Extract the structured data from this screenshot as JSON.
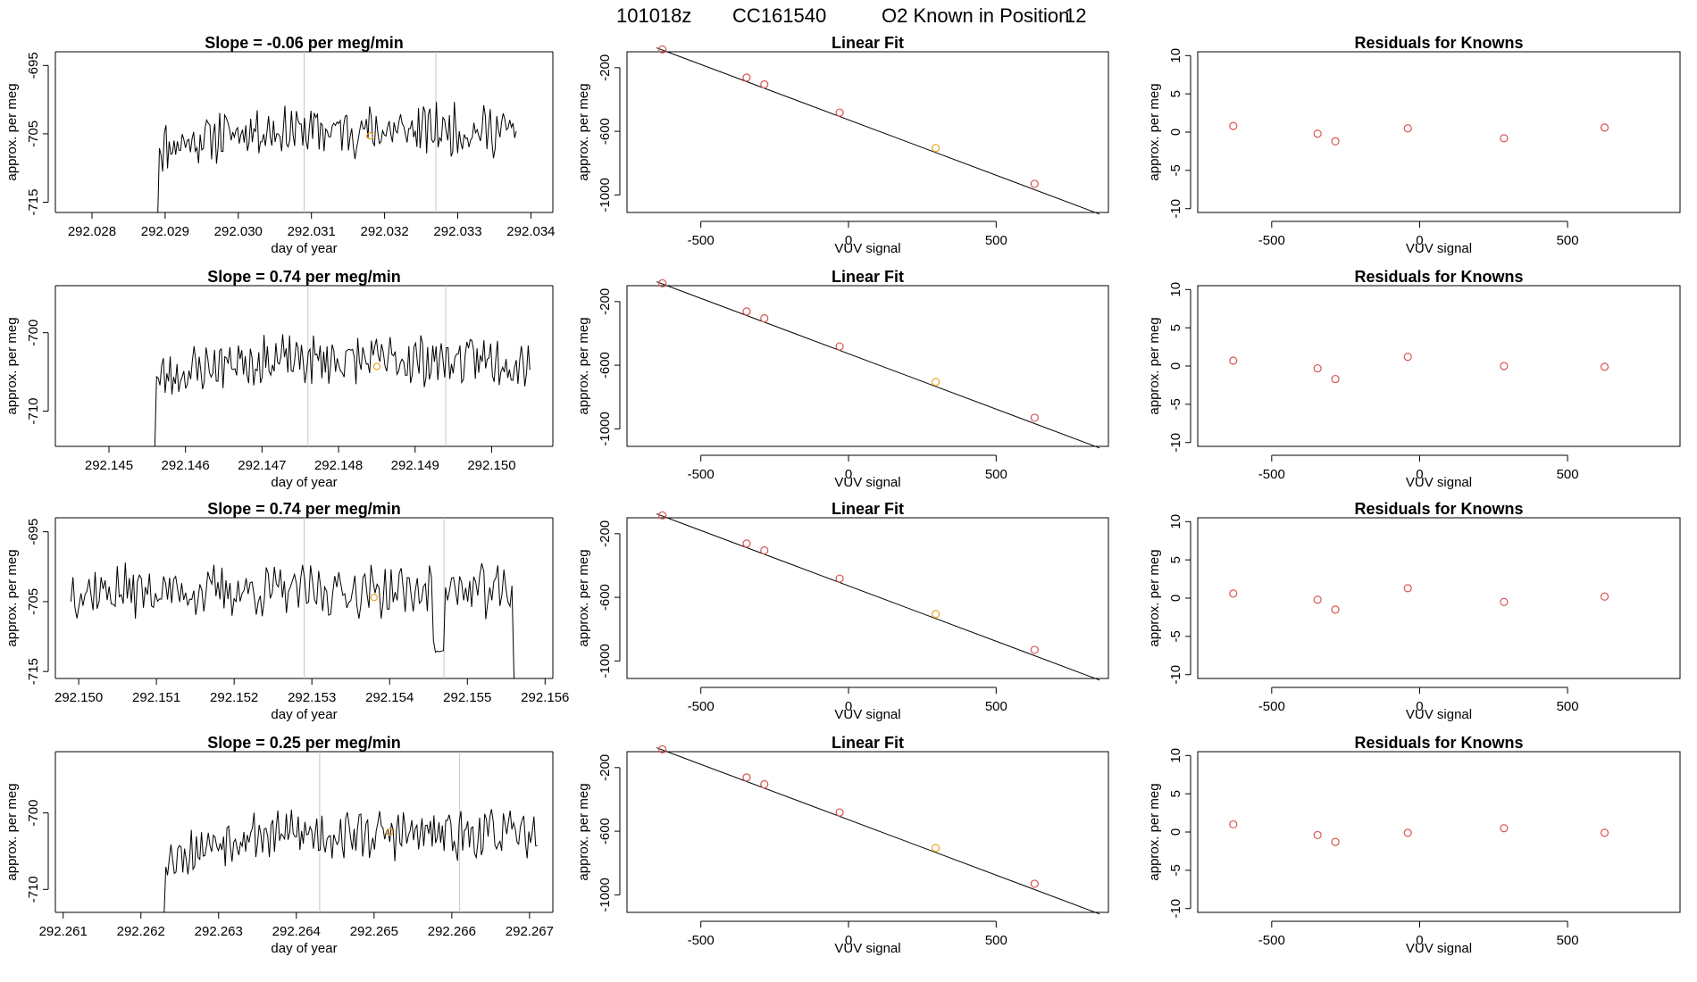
{
  "figure_title": {
    "date": "101018z",
    "cylinder": "CC161540",
    "description": "O2 Known in Position",
    "position": "12"
  },
  "colors": {
    "trace": "#000000",
    "vertical_lines": "#c8c8c8",
    "fit_points": "#d9534f",
    "known_point": "#f0a020",
    "residual_points": "#d9534f",
    "fit_line": "#000000",
    "axes": "#000000"
  },
  "chart_data": [
    {
      "type": "line",
      "panel": "timeseries",
      "row": 1,
      "title": "Slope =  -0.06  per meg/min",
      "xlabel": "day of year",
      "ylabel": "approx. per meg",
      "xlim": [
        292.0275,
        292.0343
      ],
      "ylim": [
        -716.5,
        -693
      ],
      "xticks": [
        "292.028",
        "292.029",
        "292.030",
        "292.031",
        "292.032",
        "292.033",
        "292.034"
      ],
      "yticks": [
        "-695",
        "-705",
        "-715"
      ],
      "vlines": [
        292.0309,
        292.0327
      ],
      "known_point": {
        "x": 292.0318,
        "y": -705.3
      },
      "trace": {
        "start": 292.0289,
        "end": 292.0338,
        "base": -704.5,
        "ramp_start": -716.5,
        "ramp_to": -707,
        "ramp_frac": 0.25,
        "amp": 3,
        "noise_seed": 11
      }
    },
    {
      "type": "line",
      "panel": "fit",
      "row": 1,
      "title": "Linear Fit",
      "xlabel": "VUV signal",
      "ylabel": "approx. per meg",
      "xlim": [
        -750,
        880
      ],
      "ylim": [
        -1110,
        -100
      ],
      "xticks": [
        -500,
        0,
        500
      ],
      "yticks": [
        -200,
        -600,
        -1000
      ],
      "line": [
        [
          -650,
          -75
        ],
        [
          850,
          -1120
        ]
      ],
      "points": [
        [
          -630,
          -85
        ],
        [
          -345,
          -262
        ],
        [
          -285,
          -305
        ],
        [
          -30,
          -482
        ],
        [
          295,
          -705
        ],
        [
          630,
          -930
        ]
      ],
      "known_index": 4
    },
    {
      "type": "scatter",
      "panel": "residuals",
      "row": 1,
      "title": "Residuals for Knowns",
      "xlabel": "VUV signal",
      "ylabel": "approx. per meg",
      "xlim": [
        -750,
        880
      ],
      "ylim": [
        -10.5,
        10.5
      ],
      "xticks": [
        -500,
        0,
        500
      ],
      "yticks": [
        10,
        5,
        0,
        -5,
        -10
      ],
      "points": [
        [
          -630,
          0.8
        ],
        [
          -345,
          -0.2
        ],
        [
          -285,
          -1.2
        ],
        [
          -40,
          0.5
        ],
        [
          285,
          -0.8
        ],
        [
          625,
          0.6
        ]
      ]
    },
    {
      "type": "line",
      "panel": "timeseries",
      "row": 2,
      "title": "Slope =  0.74  per meg/min",
      "xlabel": "day of year",
      "ylabel": "approx. per meg",
      "xlim": [
        292.1443,
        292.1508
      ],
      "ylim": [
        -714.5,
        -694
      ],
      "xticks": [
        "292.145",
        "292.146",
        "292.147",
        "292.148",
        "292.149",
        "292.150"
      ],
      "yticks": [
        "-700",
        "-710"
      ],
      "vlines": [
        292.1476,
        292.1494
      ],
      "known_point": {
        "x": 292.1485,
        "y": -704.3
      },
      "trace": {
        "start": 292.1456,
        "end": 292.1505,
        "base": -703.5,
        "ramp_start": -714.5,
        "ramp_to": -706,
        "ramp_frac": 0.22,
        "amp": 2.6,
        "noise_seed": 23
      }
    },
    {
      "type": "line",
      "panel": "fit",
      "row": 2,
      "title": "Linear Fit",
      "xlabel": "VUV signal",
      "ylabel": "approx. per meg",
      "xlim": [
        -750,
        880
      ],
      "ylim": [
        -1110,
        -100
      ],
      "xticks": [
        -500,
        0,
        500
      ],
      "yticks": [
        -200,
        -600,
        -1000
      ],
      "line": [
        [
          -650,
          -75
        ],
        [
          850,
          -1120
        ]
      ],
      "points": [
        [
          -630,
          -85
        ],
        [
          -345,
          -262
        ],
        [
          -285,
          -305
        ],
        [
          -30,
          -482
        ],
        [
          295,
          -705
        ],
        [
          630,
          -930
        ]
      ],
      "known_index": 4
    },
    {
      "type": "scatter",
      "panel": "residuals",
      "row": 2,
      "title": "Residuals for Knowns",
      "xlabel": "VUV signal",
      "ylabel": "approx. per meg",
      "xlim": [
        -750,
        880
      ],
      "ylim": [
        -10.5,
        10.5
      ],
      "xticks": [
        -500,
        0,
        500
      ],
      "yticks": [
        10,
        5,
        0,
        -5,
        -10
      ],
      "points": [
        [
          -630,
          0.7
        ],
        [
          -345,
          -0.3
        ],
        [
          -285,
          -1.7
        ],
        [
          -40,
          1.2
        ],
        [
          285,
          0.0
        ],
        [
          625,
          -0.1
        ]
      ]
    },
    {
      "type": "line",
      "panel": "timeseries",
      "row": 3,
      "title": "Slope =  0.74  per meg/min",
      "xlabel": "day of year",
      "ylabel": "approx. per meg",
      "xlim": [
        292.1497,
        292.1561
      ],
      "ylim": [
        -716,
        -693
      ],
      "xticks": [
        "292.150",
        "292.151",
        "292.152",
        "292.153",
        "292.154",
        "292.155",
        "292.156"
      ],
      "yticks": [
        "-695",
        "-705",
        "-715"
      ],
      "vlines": [
        292.1529,
        292.1547
      ],
      "known_point": {
        "x": 292.1538,
        "y": -704.4
      },
      "trace": {
        "start": 292.1499,
        "end": 292.1556,
        "base": -703.5,
        "ramp_start": -703.5,
        "ramp_to": -703.5,
        "ramp_frac": 0.0,
        "amp": 3,
        "noise_seed": 37,
        "dip_at": 0.83,
        "end_drop": -716
      }
    },
    {
      "type": "line",
      "panel": "fit",
      "row": 3,
      "title": "Linear Fit",
      "xlabel": "VUV signal",
      "ylabel": "approx. per meg",
      "xlim": [
        -750,
        880
      ],
      "ylim": [
        -1110,
        -100
      ],
      "xticks": [
        -500,
        0,
        500
      ],
      "yticks": [
        -200,
        -600,
        -1000
      ],
      "line": [
        [
          -650,
          -75
        ],
        [
          850,
          -1120
        ]
      ],
      "points": [
        [
          -630,
          -85
        ],
        [
          -345,
          -262
        ],
        [
          -285,
          -305
        ],
        [
          -30,
          -482
        ],
        [
          295,
          -705
        ],
        [
          630,
          -930
        ]
      ],
      "known_index": 4
    },
    {
      "type": "scatter",
      "panel": "residuals",
      "row": 3,
      "title": "Residuals for Knowns",
      "xlabel": "VUV signal",
      "ylabel": "approx. per meg",
      "xlim": [
        -750,
        880
      ],
      "ylim": [
        -10.5,
        10.5
      ],
      "xticks": [
        -500,
        0,
        500
      ],
      "yticks": [
        10,
        5,
        0,
        -5,
        -10
      ],
      "points": [
        [
          -630,
          0.6
        ],
        [
          -345,
          -0.2
        ],
        [
          -285,
          -1.5
        ],
        [
          -40,
          1.3
        ],
        [
          285,
          -0.5
        ],
        [
          625,
          0.2
        ]
      ]
    },
    {
      "type": "line",
      "panel": "timeseries",
      "row": 4,
      "title": "Slope =  0.25  per meg/min",
      "xlabel": "day of year",
      "ylabel": "approx. per meg",
      "xlim": [
        292.2609,
        292.2673
      ],
      "ylim": [
        -713,
        -692
      ],
      "xticks": [
        "292.261",
        "292.262",
        "292.263",
        "292.264",
        "292.265",
        "292.266",
        "292.267"
      ],
      "yticks": [
        "-700",
        "-710"
      ],
      "vlines": [
        292.2643,
        292.2661
      ],
      "known_point": {
        "x": 292.2652,
        "y": -702.5
      },
      "trace": {
        "start": 292.2623,
        "end": 292.2671,
        "base": -702.8,
        "ramp_start": -713,
        "ramp_to": -706,
        "ramp_frac": 0.2,
        "amp": 2.6,
        "noise_seed": 53
      }
    },
    {
      "type": "line",
      "panel": "fit",
      "row": 4,
      "title": "Linear Fit",
      "xlabel": "VUV signal",
      "ylabel": "approx. per meg",
      "xlim": [
        -750,
        880
      ],
      "ylim": [
        -1110,
        -100
      ],
      "xticks": [
        -500,
        0,
        500
      ],
      "yticks": [
        -200,
        -600,
        -1000
      ],
      "line": [
        [
          -650,
          -75
        ],
        [
          850,
          -1120
        ]
      ],
      "points": [
        [
          -630,
          -85
        ],
        [
          -345,
          -262
        ],
        [
          -285,
          -305
        ],
        [
          -30,
          -482
        ],
        [
          295,
          -705
        ],
        [
          630,
          -930
        ]
      ],
      "known_index": 4
    },
    {
      "type": "scatter",
      "panel": "residuals",
      "row": 4,
      "title": "Residuals for Knowns",
      "xlabel": "VUV signal",
      "ylabel": "approx. per meg",
      "xlim": [
        -750,
        880
      ],
      "ylim": [
        -10.5,
        10.5
      ],
      "xticks": [
        -500,
        0,
        500
      ],
      "yticks": [
        10,
        5,
        0,
        -5,
        -10
      ],
      "points": [
        [
          -630,
          1.0
        ],
        [
          -345,
          -0.4
        ],
        [
          -285,
          -1.3
        ],
        [
          -40,
          -0.1
        ],
        [
          285,
          0.5
        ],
        [
          625,
          -0.1
        ]
      ]
    }
  ]
}
